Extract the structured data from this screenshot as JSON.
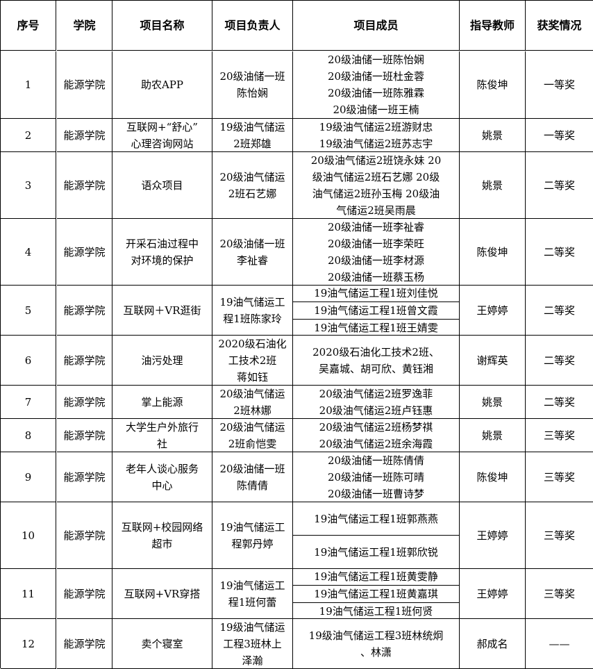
{
  "headers": [
    "序号",
    "学院",
    "项目名称",
    "项目负责人",
    "项目成员",
    "指导教师",
    "获奖情况"
  ],
  "rows": [
    {
      "no": "1",
      "college": "能源学院",
      "name": [
        "助农APP"
      ],
      "leader": [
        "20级油储一班",
        "陈怡娴"
      ],
      "members": [
        "20级油储一班陈怡娴",
        "20级油储一班杜金蓉",
        "20级油储一班陈雅霖",
        "20级油储一班王楠"
      ],
      "split": false,
      "teacher": "陈俊坤",
      "award": "一等奖"
    },
    {
      "no": "2",
      "college": "能源学院",
      "name": [
        "互联网+“舒心”",
        "心理咨询网站"
      ],
      "leader": [
        "19级油气储运",
        "2班郑雄"
      ],
      "members": [
        "19级油气储运2班游财忠",
        "19级油气储运2班苏志宇"
      ],
      "split": false,
      "teacher": "姚景",
      "award": "一等奖"
    },
    {
      "no": "3",
      "college": "能源学院",
      "name": [
        "语众项目"
      ],
      "leader": [
        "20级油气储运",
        "2班石艺娜"
      ],
      "members": [
        "20级油气储运2班饶永妹 20",
        "级油气储运2班石艺娜 20级",
        "油气储运2班孙玉梅 20级油",
        "气储运2班吴雨晨"
      ],
      "split": false,
      "teacher": "姚景",
      "award": "二等奖"
    },
    {
      "no": "4",
      "college": "能源学院",
      "name": [
        "开采石油过程中",
        "对环境的保护"
      ],
      "leader": [
        "20级油储一班",
        "李祉睿"
      ],
      "members": [
        "20级油储一班李祉睿",
        "20级油储一班李荣旺",
        "20级油储一班李材源",
        "20级油储一班蔡玉杨"
      ],
      "split": false,
      "teacher": "陈俊坤",
      "award": "二等奖"
    },
    {
      "no": "5",
      "college": "能源学院",
      "name": [
        "互联网＋VR逛街"
      ],
      "leader": [
        "19油气储运工",
        "程1班陈家玲"
      ],
      "members": [
        "19油气储运工程1班刘佳悦",
        "19油气储运工程1班曾文霞",
        "19油气储运工程1班王婧雯"
      ],
      "split": true,
      "teacher": "王婷婷",
      "award": "二等奖"
    },
    {
      "no": "6",
      "college": "能源学院",
      "name": [
        "油污处理"
      ],
      "leader": [
        "2020级石油化",
        "工技术2班",
        "蒋如钰"
      ],
      "members": [
        "2020级石油化工技术2班、",
        "吴嘉城、胡可欣、黄钰湘"
      ],
      "split": false,
      "teacher": "谢辉英",
      "award": "二等奖"
    },
    {
      "no": "7",
      "college": "能源学院",
      "name": [
        "掌上能源"
      ],
      "leader": [
        "20级油气储运",
        "2班林娜"
      ],
      "members": [
        "20级油气储运2班罗逸菲",
        "20级油气储运2班卢钰惠"
      ],
      "split": false,
      "teacher": "姚景",
      "award": "二等奖"
    },
    {
      "no": "8",
      "college": "能源学院",
      "name": [
        "大学生户外旅行",
        "社"
      ],
      "leader": [
        "20级油气储运",
        "2班俞恺雯"
      ],
      "members": [
        "20级油气储运2班杨梦祺",
        "20级油气储运2班余海霞"
      ],
      "split": false,
      "teacher": "姚景",
      "award": "三等奖"
    },
    {
      "no": "9",
      "college": "能源学院",
      "name": [
        "老年人谈心服务",
        "中心"
      ],
      "leader": [
        "20级油储一班",
        "陈倩倩"
      ],
      "members": [
        "20级油储一班陈倩倩",
        "20级油储一班陈可晴",
        "20级油储一班曹诗梦"
      ],
      "split": false,
      "teacher": "陈俊坤",
      "award": "三等奖"
    },
    {
      "no": "10",
      "college": "能源学院",
      "name": [
        "互联网+校园网络",
        "超市"
      ],
      "leader": [
        "19油气储运工",
        "程郭丹婷"
      ],
      "members": [
        "19油气储运工程1班郭燕燕",
        "19油气储运工程1班郭欣锐"
      ],
      "split": true,
      "teacher": "王婷婷",
      "award": "三等奖"
    },
    {
      "no": "11",
      "college": "能源学院",
      "name": [
        "互联网+VR穿搭"
      ],
      "leader": [
        "19油气储运工",
        "程1班何蕾"
      ],
      "members": [
        "19油气储运工程1班黄雯静",
        "19油气储运工程1班黄嘉琪",
        "19油气储运工程1班何贤"
      ],
      "split": true,
      "teacher": "王婷婷",
      "award": "三等奖"
    },
    {
      "no": "12",
      "college": "能源学院",
      "name": [
        "卖个寝室"
      ],
      "leader": [
        "19级油气储运",
        "工程3班林上",
        "泽瀚"
      ],
      "members": [
        "19级油气储运工程3班林统炯",
        "、林潇"
      ],
      "split": false,
      "teacher": "郝成名",
      "award": "——"
    }
  ]
}
